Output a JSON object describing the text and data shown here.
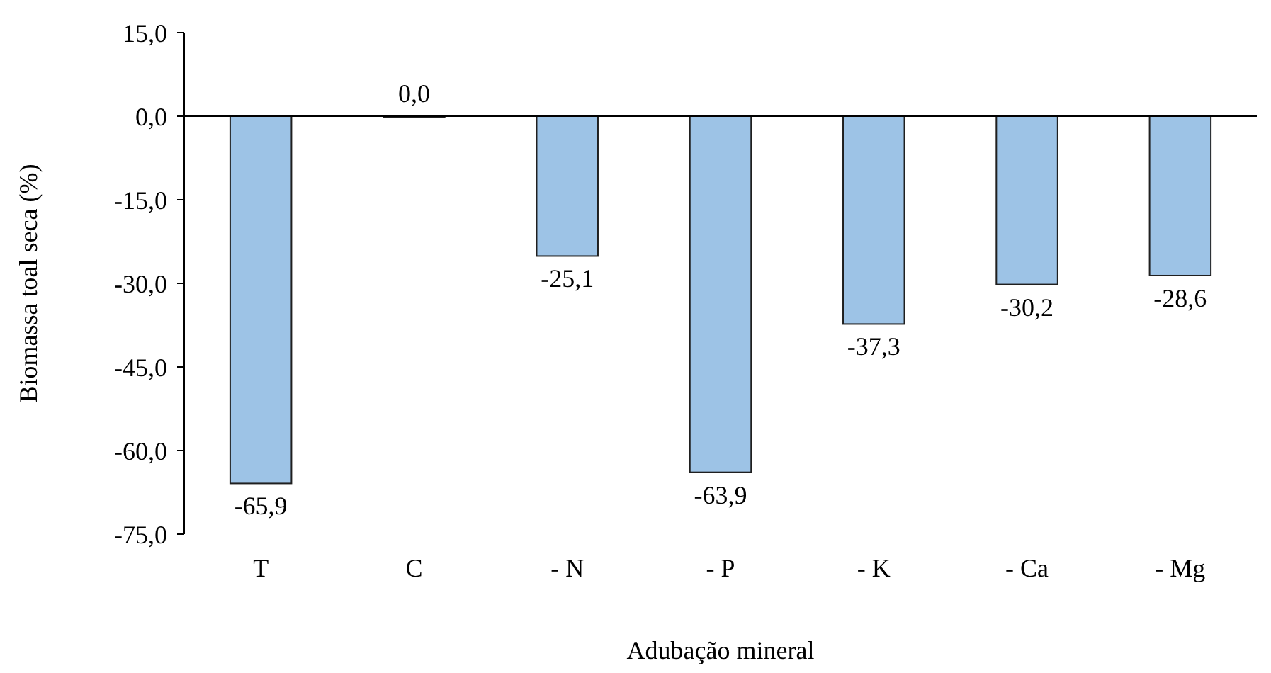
{
  "chart_data": {
    "type": "bar",
    "xlabel": "Adubação mineral",
    "ylabel": "Biomassa toal seca (%)",
    "categories": [
      "T",
      "C",
      "- N",
      "- P",
      "- K",
      "- Ca",
      "- Mg"
    ],
    "values": [
      -65.9,
      0.0,
      -25.1,
      -63.9,
      -37.3,
      -30.2,
      -28.6
    ],
    "value_labels": [
      "-65,9",
      "0,0",
      "-25,1",
      "-63,9",
      "-37,3",
      "-30,2",
      "-28,6"
    ],
    "color": "#9dc3e6",
    "ylim": [
      -75,
      15
    ],
    "yticks": [
      {
        "value": -75,
        "label": "-75,0"
      },
      {
        "value": -60,
        "label": "-60,0"
      },
      {
        "value": -45,
        "label": "-45,0"
      },
      {
        "value": -30,
        "label": "-30,0"
      },
      {
        "value": -15,
        "label": "-15,0"
      },
      {
        "value": 0,
        "label": "0,0"
      },
      {
        "value": 15,
        "label": "15,0"
      }
    ]
  }
}
